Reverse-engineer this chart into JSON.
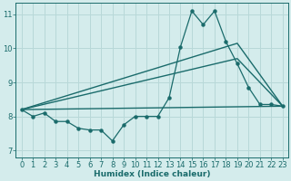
{
  "xlabel": "Humidex (Indice chaleur)",
  "bg_color": "#d4ecec",
  "grid_color": "#b8d8d8",
  "line_color": "#1a6b6b",
  "xlim": [
    -0.5,
    23.5
  ],
  "ylim": [
    6.8,
    11.35
  ],
  "xticks": [
    0,
    1,
    2,
    3,
    4,
    5,
    6,
    7,
    8,
    9,
    10,
    11,
    12,
    13,
    14,
    15,
    16,
    17,
    18,
    19,
    20,
    21,
    22,
    23
  ],
  "yticks": [
    7,
    8,
    9,
    10,
    11
  ],
  "line1_x": [
    0,
    1,
    2,
    3,
    4,
    5,
    6,
    7,
    8,
    9,
    10,
    11,
    12,
    13,
    14,
    15,
    16,
    17,
    18,
    19,
    20,
    21,
    22,
    23
  ],
  "line1_y": [
    8.2,
    8.0,
    8.1,
    7.85,
    7.85,
    7.65,
    7.6,
    7.6,
    7.28,
    7.75,
    8.0,
    8.0,
    8.0,
    8.55,
    10.05,
    11.1,
    10.7,
    11.1,
    10.2,
    9.55,
    8.85,
    8.35,
    8.35,
    8.3
  ],
  "line2_x": [
    0,
    23
  ],
  "line2_y": [
    8.2,
    8.3
  ],
  "line3_x": [
    0,
    19,
    23
  ],
  "line3_y": [
    8.2,
    9.7,
    8.3
  ],
  "line4_x": [
    0,
    19,
    23
  ],
  "line4_y": [
    8.2,
    10.15,
    8.3
  ]
}
